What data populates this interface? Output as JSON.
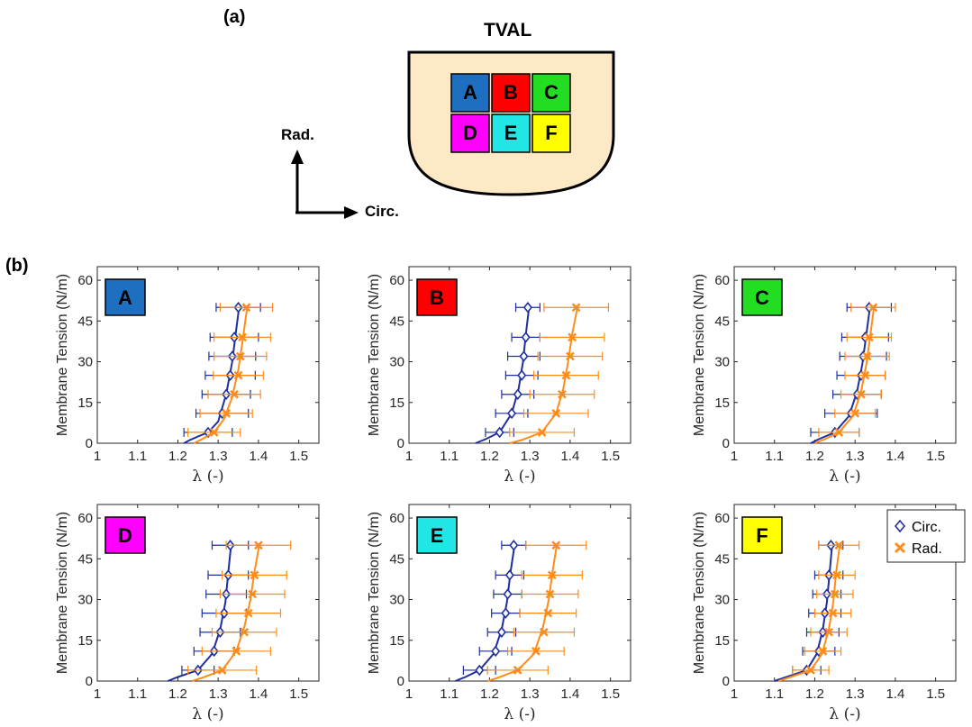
{
  "panel_a": {
    "label": "(a)",
    "diagram": {
      "title": "TVAL",
      "valve_fill": "#fde9c6",
      "regions": [
        {
          "letter": "A",
          "color": "#1f6fc0"
        },
        {
          "letter": "B",
          "color": "#ff0000"
        },
        {
          "letter": "C",
          "color": "#22dd22"
        },
        {
          "letter": "D",
          "color": "#ff00ff"
        },
        {
          "letter": "E",
          "color": "#22e6e6"
        },
        {
          "letter": "F",
          "color": "#ffff00"
        }
      ]
    },
    "axes_labels": {
      "vertical": "Rad.",
      "horizontal": "Circ."
    }
  },
  "panel_b": {
    "label": "(b)"
  },
  "colors": {
    "circ": "#1f2f9e",
    "rad": "#ff8c1a"
  },
  "chart_data": [
    {
      "type": "line",
      "region": "A",
      "region_color": "#1f6fc0",
      "xlabel": "λ (-)",
      "ylabel": "Membrane Tension (N/m)",
      "xlim": [
        1,
        1.55
      ],
      "ylim": [
        0,
        65
      ],
      "xticks": [
        "1",
        "1.1",
        "1.2",
        "1.3",
        "1.4",
        "1.5"
      ],
      "yticks": [
        "0",
        "15",
        "30",
        "45",
        "60"
      ],
      "series": [
        {
          "key": "circ",
          "marker": "diamond",
          "x": [
            1.275,
            1.31,
            1.32,
            1.33,
            1.335,
            1.34,
            1.35
          ],
          "y": [
            4,
            11,
            18,
            25,
            32,
            39,
            50
          ],
          "err": [
            0.06,
            0.065,
            0.06,
            0.062,
            0.058,
            0.06,
            0.055
          ],
          "curve_x": [
            1.215,
            1.23,
            1.25,
            1.275,
            1.3,
            1.32,
            1.335,
            1.345,
            1.352
          ],
          "curve_y": [
            0,
            1.2,
            2.5,
            4,
            8,
            18,
            30,
            42,
            50
          ]
        },
        {
          "key": "rad",
          "marker": "x",
          "x": [
            1.29,
            1.32,
            1.34,
            1.35,
            1.355,
            1.36,
            1.37
          ],
          "y": [
            4,
            11,
            18,
            25,
            32,
            39,
            50
          ],
          "err": [
            0.065,
            0.065,
            0.065,
            0.062,
            0.065,
            0.07,
            0.065
          ],
          "curve_x": [
            1.24,
            1.26,
            1.29,
            1.315,
            1.335,
            1.35,
            1.36,
            1.372
          ],
          "curve_y": [
            0,
            1.5,
            4,
            9,
            17,
            27,
            37,
            50
          ]
        }
      ]
    },
    {
      "type": "line",
      "region": "B",
      "region_color": "#ff0000",
      "xlabel": "λ (-)",
      "ylabel": "Membrane Tension (N/m)",
      "xlim": [
        1,
        1.55
      ],
      "ylim": [
        0,
        65
      ],
      "xticks": [
        "1",
        "1.1",
        "1.2",
        "1.3",
        "1.4",
        "1.5"
      ],
      "yticks": [
        "0",
        "15",
        "30",
        "45",
        "60"
      ],
      "series": [
        {
          "key": "circ",
          "marker": "diamond",
          "x": [
            1.225,
            1.255,
            1.27,
            1.28,
            1.285,
            1.29,
            1.295
          ],
          "y": [
            4,
            11,
            18,
            25,
            32,
            39,
            50
          ],
          "err": [
            0.035,
            0.04,
            0.04,
            0.04,
            0.04,
            0.035,
            0.03
          ],
          "curve_x": [
            1.165,
            1.19,
            1.225,
            1.255,
            1.272,
            1.283,
            1.29,
            1.298
          ],
          "curve_y": [
            0,
            1.5,
            4,
            11,
            20,
            30,
            40,
            50
          ]
        },
        {
          "key": "rad",
          "marker": "x",
          "x": [
            1.33,
            1.365,
            1.38,
            1.39,
            1.4,
            1.405,
            1.415
          ],
          "y": [
            4,
            11,
            18,
            25,
            32,
            39,
            50
          ],
          "err": [
            0.08,
            0.08,
            0.08,
            0.08,
            0.08,
            0.08,
            0.08
          ],
          "curve_x": [
            1.25,
            1.28,
            1.33,
            1.365,
            1.383,
            1.395,
            1.405,
            1.418
          ],
          "curve_y": [
            0,
            1.2,
            4,
            11,
            20,
            30,
            40,
            50
          ]
        }
      ]
    },
    {
      "type": "line",
      "region": "C",
      "region_color": "#22dd22",
      "xlabel": "λ (-)",
      "ylabel": "Membrane Tension (N/m)",
      "xlim": [
        1,
        1.55
      ],
      "ylim": [
        0,
        65
      ],
      "xticks": [
        "1",
        "1.1",
        "1.2",
        "1.3",
        "1.4",
        "1.5"
      ],
      "yticks": [
        "0",
        "15",
        "30",
        "45",
        "60"
      ],
      "series": [
        {
          "key": "circ",
          "marker": "diamond",
          "x": [
            1.25,
            1.29,
            1.305,
            1.315,
            1.32,
            1.325,
            1.335
          ],
          "y": [
            4,
            11,
            18,
            25,
            32,
            39,
            50
          ],
          "err": [
            0.06,
            0.065,
            0.06,
            0.06,
            0.058,
            0.058,
            0.055
          ],
          "curve_x": [
            1.19,
            1.21,
            1.25,
            1.285,
            1.305,
            1.318,
            1.328,
            1.337
          ],
          "curve_y": [
            0,
            1.5,
            4,
            10,
            19,
            29,
            40,
            50
          ]
        },
        {
          "key": "rad",
          "marker": "x",
          "x": [
            1.26,
            1.3,
            1.315,
            1.325,
            1.33,
            1.335,
            1.345
          ],
          "y": [
            4,
            11,
            18,
            25,
            32,
            39,
            50
          ],
          "err": [
            0.05,
            0.05,
            0.05,
            0.05,
            0.055,
            0.055,
            0.055
          ],
          "curve_x": [
            1.2,
            1.225,
            1.26,
            1.295,
            1.315,
            1.328,
            1.338,
            1.347
          ],
          "curve_y": [
            0,
            1.5,
            4,
            10,
            19,
            29,
            40,
            50
          ]
        }
      ]
    },
    {
      "type": "line",
      "region": "D",
      "region_color": "#ff00ff",
      "xlabel": "λ (-)",
      "ylabel": "Membrane Tension (N/m)",
      "xlim": [
        1,
        1.55
      ],
      "ylim": [
        0,
        65
      ],
      "xticks": [
        "1",
        "1.1",
        "1.2",
        "1.3",
        "1.4",
        "1.5"
      ],
      "yticks": [
        "0",
        "15",
        "30",
        "45",
        "60"
      ],
      "series": [
        {
          "key": "circ",
          "marker": "diamond",
          "x": [
            1.25,
            1.29,
            1.305,
            1.315,
            1.32,
            1.325,
            1.33
          ],
          "y": [
            4,
            11,
            18,
            25,
            32,
            39,
            50
          ],
          "err": [
            0.04,
            0.05,
            0.05,
            0.055,
            0.05,
            0.05,
            0.045
          ],
          "curve_x": [
            1.175,
            1.2,
            1.25,
            1.285,
            1.305,
            1.318,
            1.325,
            1.332
          ],
          "curve_y": [
            0,
            1.5,
            4,
            10,
            19,
            29,
            40,
            50
          ]
        },
        {
          "key": "rad",
          "marker": "x",
          "x": [
            1.31,
            1.345,
            1.365,
            1.375,
            1.385,
            1.39,
            1.4
          ],
          "y": [
            4,
            11,
            18,
            25,
            32,
            39,
            50
          ],
          "err": [
            0.085,
            0.085,
            0.08,
            0.08,
            0.08,
            0.08,
            0.08
          ],
          "curve_x": [
            1.235,
            1.26,
            1.31,
            1.345,
            1.365,
            1.38,
            1.39,
            1.402
          ],
          "curve_y": [
            0,
            1.2,
            4,
            11,
            20,
            30,
            40,
            50
          ]
        }
      ]
    },
    {
      "type": "line",
      "region": "E",
      "region_color": "#22e6e6",
      "xlabel": "λ (-)",
      "ylabel": "Membrane Tension (N/m)",
      "xlim": [
        1,
        1.55
      ],
      "ylim": [
        0,
        65
      ],
      "xticks": [
        "1",
        "1.1",
        "1.2",
        "1.3",
        "1.4",
        "1.5"
      ],
      "yticks": [
        "0",
        "15",
        "30",
        "45",
        "60"
      ],
      "series": [
        {
          "key": "circ",
          "marker": "diamond",
          "x": [
            1.175,
            1.215,
            1.23,
            1.24,
            1.245,
            1.25,
            1.26
          ],
          "y": [
            4,
            11,
            18,
            25,
            32,
            39,
            50
          ],
          "err": [
            0.04,
            0.04,
            0.035,
            0.035,
            0.035,
            0.035,
            0.03
          ],
          "curve_x": [
            1.115,
            1.14,
            1.175,
            1.21,
            1.23,
            1.243,
            1.252,
            1.262
          ],
          "curve_y": [
            0,
            1.5,
            4,
            10,
            19,
            29,
            40,
            50
          ]
        },
        {
          "key": "rad",
          "marker": "x",
          "x": [
            1.27,
            1.315,
            1.335,
            1.345,
            1.35,
            1.355,
            1.365
          ],
          "y": [
            4,
            11,
            18,
            25,
            32,
            39,
            50
          ],
          "err": [
            0.075,
            0.07,
            0.075,
            0.07,
            0.07,
            0.075,
            0.075
          ],
          "curve_x": [
            1.195,
            1.22,
            1.27,
            1.31,
            1.333,
            1.347,
            1.356,
            1.367
          ],
          "curve_y": [
            0,
            1.2,
            4,
            10,
            20,
            30,
            40,
            50
          ]
        }
      ]
    },
    {
      "type": "line",
      "region": "F",
      "region_color": "#ffff00",
      "xlabel": "λ (-)",
      "ylabel": "Membrane Tension (N/m)",
      "xlim": [
        1,
        1.55
      ],
      "ylim": [
        0,
        65
      ],
      "xticks": [
        "1",
        "1.1",
        "1.2",
        "1.3",
        "1.4",
        "1.5"
      ],
      "yticks": [
        "0",
        "15",
        "30",
        "45",
        "60"
      ],
      "legend": {
        "position": "top-right",
        "entries": [
          "Circ.",
          "Rad."
        ]
      },
      "series": [
        {
          "key": "circ",
          "marker": "diamond",
          "name": "Circ.",
          "x": [
            1.18,
            1.21,
            1.22,
            1.225,
            1.23,
            1.235,
            1.24
          ],
          "y": [
            4,
            11,
            18,
            25,
            32,
            39,
            50
          ],
          "err": [
            0.035,
            0.04,
            0.04,
            0.04,
            0.035,
            0.035,
            0.03
          ],
          "curve_x": [
            1.1,
            1.13,
            1.18,
            1.205,
            1.22,
            1.23,
            1.237,
            1.243
          ],
          "curve_y": [
            0,
            1.5,
            4,
            10,
            19,
            29,
            40,
            50
          ]
        },
        {
          "key": "rad",
          "marker": "x",
          "name": "Rad.",
          "x": [
            1.19,
            1.22,
            1.235,
            1.245,
            1.25,
            1.255,
            1.26
          ],
          "y": [
            4,
            11,
            18,
            25,
            32,
            39,
            50
          ],
          "err": [
            0.045,
            0.045,
            0.045,
            0.045,
            0.045,
            0.045,
            0.05
          ],
          "curve_x": [
            1.11,
            1.14,
            1.19,
            1.218,
            1.235,
            1.246,
            1.253,
            1.262
          ],
          "curve_y": [
            0,
            1.5,
            4,
            10,
            19,
            29,
            40,
            50
          ]
        }
      ]
    }
  ]
}
